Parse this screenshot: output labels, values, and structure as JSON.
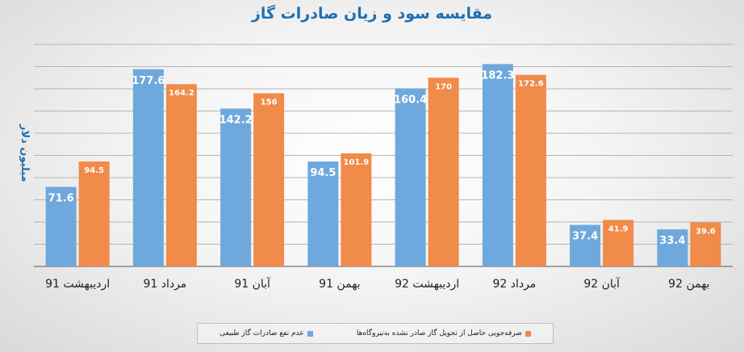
{
  "chart_data": {
    "type": "bar",
    "title": "مقایسه سود و زیان صادرات گاز",
    "ylabel": "میلیون دلار",
    "xlabel": "",
    "categories": [
      "اردیبهشت 91",
      "مرداد 91",
      "آبان 91",
      "بهمن 91",
      "اردیبهشت 92",
      "مرداد 92",
      "آبان 92",
      "بهمن 92"
    ],
    "series": [
      {
        "name": "عدم نفع صادرات گاز طبیعی",
        "color": "#6fa8dc",
        "values": [
          71.6,
          177.6,
          142.2,
          94.5,
          160.4,
          182.3,
          37.4,
          33.4
        ],
        "labels": [
          "71.6",
          "177.6",
          "142.2",
          "94.5",
          "160.4",
          "182.3",
          "37.4",
          "33.4"
        ]
      },
      {
        "name": "صرفه‌جویی حاصل از تحویل گاز صادر نشده به‌نیروگاه‌ها",
        "color": "#f08b4a",
        "values": [
          94.5,
          164.2,
          156,
          101.9,
          170,
          172.6,
          41.9,
          39.6
        ],
        "labels": [
          "94.5",
          "164.2",
          "156",
          "101.9",
          "170",
          "172.6",
          "41.9",
          "39.6"
        ]
      }
    ],
    "ylim": [
      0,
      200
    ],
    "grid": true,
    "legend_position": "bottom"
  }
}
